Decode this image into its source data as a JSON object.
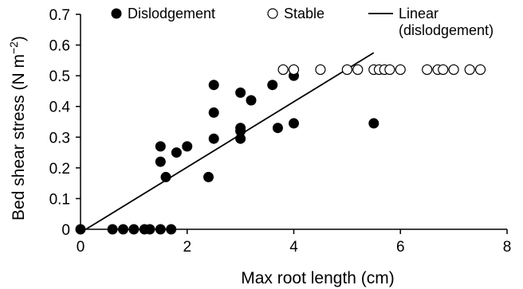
{
  "chart_data": {
    "type": "scatter",
    "xlabel": "Max root length (cm)",
    "ylabel_main": "Bed shear stress (N m",
    "ylabel_sup": "−2",
    "ylabel_end": ")",
    "xlim": [
      0,
      8
    ],
    "ylim": [
      0,
      0.7
    ],
    "xticks": [
      0,
      2,
      4,
      6,
      8
    ],
    "yticks": [
      0,
      0.1,
      0.2,
      0.3,
      0.4,
      0.5,
      0.6,
      0.7
    ],
    "xtick_labels": [
      "0",
      "2",
      "4",
      "6",
      "8"
    ],
    "ytick_labels": [
      "0",
      "0.1",
      "0.2",
      "0.3",
      "0.4",
      "0.5",
      "0.6",
      "0.7"
    ],
    "legend": {
      "placement": "top",
      "dislodgement_label": "Dislodgement",
      "stable_label": "Stable",
      "linear_label_line1": "Linear",
      "linear_label_line2": "(dislodgement)"
    },
    "series": [
      {
        "name": "Dislodgement",
        "marker": "filled-circle",
        "points": [
          [
            0,
            0
          ],
          [
            0.6,
            0
          ],
          [
            0.8,
            0
          ],
          [
            1.0,
            0
          ],
          [
            1.2,
            0
          ],
          [
            1.3,
            0
          ],
          [
            1.5,
            0
          ],
          [
            1.7,
            0
          ],
          [
            1.5,
            0.27
          ],
          [
            1.5,
            0.22
          ],
          [
            1.6,
            0.17
          ],
          [
            1.8,
            0.25
          ],
          [
            2.0,
            0.27
          ],
          [
            2.4,
            0.17
          ],
          [
            2.5,
            0.295
          ],
          [
            2.5,
            0.38
          ],
          [
            2.5,
            0.47
          ],
          [
            3.0,
            0.445
          ],
          [
            3.0,
            0.33
          ],
          [
            3.0,
            0.32
          ],
          [
            3.0,
            0.295
          ],
          [
            3.2,
            0.42
          ],
          [
            3.6,
            0.47
          ],
          [
            3.7,
            0.33
          ],
          [
            4.0,
            0.5
          ],
          [
            4.0,
            0.345
          ],
          [
            5.5,
            0.345
          ]
        ]
      },
      {
        "name": "Stable",
        "marker": "open-circle",
        "points": [
          [
            3.8,
            0.52
          ],
          [
            4.0,
            0.52
          ],
          [
            4.5,
            0.52
          ],
          [
            5.0,
            0.52
          ],
          [
            5.2,
            0.52
          ],
          [
            5.5,
            0.52
          ],
          [
            5.6,
            0.52
          ],
          [
            5.7,
            0.52
          ],
          [
            5.8,
            0.52
          ],
          [
            6.0,
            0.52
          ],
          [
            6.5,
            0.52
          ],
          [
            6.7,
            0.52
          ],
          [
            6.8,
            0.52
          ],
          [
            7.0,
            0.52
          ],
          [
            7.3,
            0.52
          ],
          [
            7.5,
            0.52
          ]
        ]
      },
      {
        "name": "Linear (dislodgement)",
        "marker": "line",
        "points": [
          [
            0.1,
            0
          ],
          [
            5.5,
            0.575
          ]
        ]
      }
    ]
  }
}
